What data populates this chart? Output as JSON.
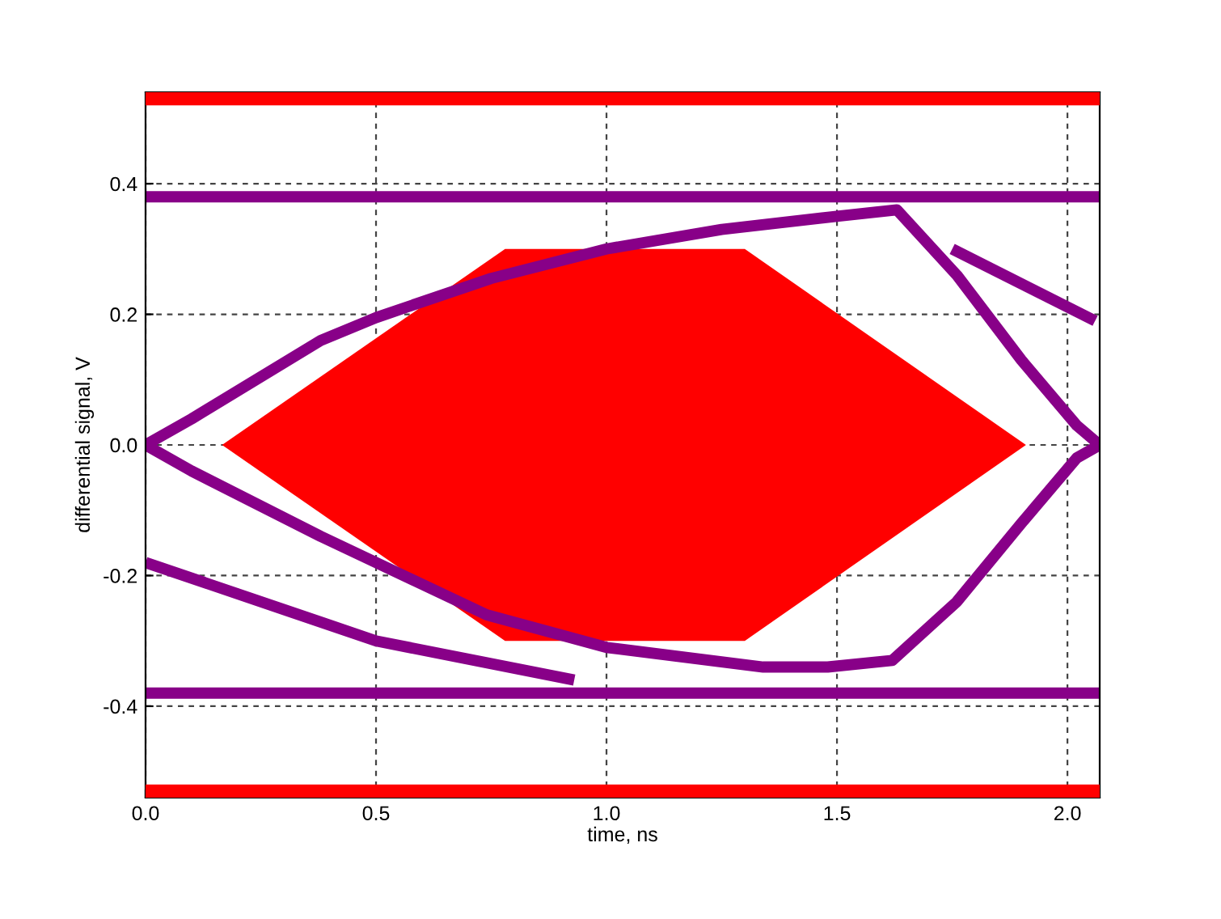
{
  "chart_data": {
    "type": "line",
    "xlabel": "time, ns",
    "ylabel": "differential signal, V",
    "xlim": [
      0,
      2.07
    ],
    "ylim": [
      -0.54,
      0.54
    ],
    "xticks": [
      {
        "value": 0,
        "label": "0.0"
      },
      0.5,
      {
        "value": 1,
        "label": "1.0"
      },
      1.5,
      {
        "value": 2,
        "label": "2.0"
      }
    ],
    "yticks": [
      -0.4,
      -0.2,
      {
        "value": 0,
        "label": "0.0"
      },
      0.2,
      0.4
    ],
    "grid": true,
    "line_style": "solid",
    "marker": "none",
    "bands": [
      {
        "axis": "y",
        "from": 0.52,
        "to": 0.54,
        "color": "#ff0000"
      },
      {
        "axis": "y",
        "from": -0.54,
        "to": -0.52,
        "color": "#ff0000"
      }
    ],
    "series": [
      {
        "type": "area",
        "color": "#ff0000",
        "x": [
          0.166,
          0.78,
          1.3,
          1.91,
          1.3,
          0.78,
          0.166
        ],
        "values": [
          0,
          0.3,
          0.3,
          0,
          -0.3,
          -0.3,
          0
        ]
      },
      {
        "color": "#880088",
        "x": [
          0,
          2.07
        ],
        "values": [
          0.38,
          0.38
        ]
      },
      {
        "color": "#880088",
        "x": [
          0,
          2.07
        ],
        "values": [
          -0.38,
          -0.38
        ]
      },
      {
        "color": "#880088",
        "x": [
          0,
          0.1,
          0.38,
          0.5,
          0.75,
          1.0,
          1.25,
          1.5,
          1.63,
          1.76,
          1.9,
          2.02,
          2.07
        ],
        "values": [
          0,
          0.04,
          0.16,
          0.195,
          0.255,
          0.3,
          0.33,
          0.35,
          0.36,
          0.26,
          0.13,
          0.03,
          0
        ]
      },
      {
        "color": "#880088",
        "x": [
          0,
          0.1,
          0.38,
          0.74,
          1.0,
          1.34,
          1.48,
          1.62,
          1.76,
          1.9,
          2.02,
          2.07
        ],
        "values": [
          0,
          -0.04,
          -0.14,
          -0.26,
          -0.31,
          -0.34,
          -0.34,
          -0.33,
          -0.24,
          -0.12,
          -0.02,
          0
        ]
      },
      {
        "color": "#880088",
        "x": [
          0,
          0.5,
          0.93
        ],
        "values": [
          -0.18,
          -0.3,
          -0.36
        ]
      },
      {
        "color": "#880088",
        "x": [
          1.75,
          2.06
        ],
        "values": [
          0.3,
          0.19
        ]
      }
    ]
  }
}
